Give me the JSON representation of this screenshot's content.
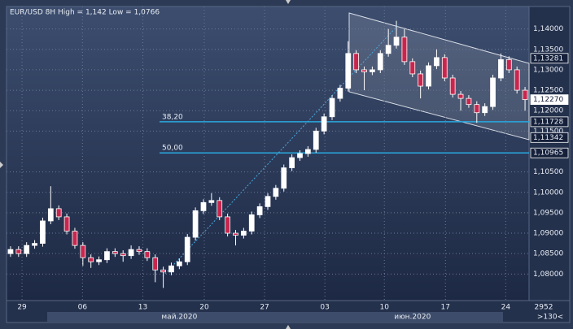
{
  "chart_data": {
    "type": "candlestick",
    "title": "EUR/USD 8H High = 1,142 Low = 1,0766",
    "up_color": "#ffffff",
    "down_color": "#c8264e",
    "candles": [
      [
        1.085,
        1.0868,
        1.0842,
        1.086
      ],
      [
        1.086,
        1.0868,
        1.0842,
        1.085
      ],
      [
        1.085,
        1.0878,
        1.0842,
        1.087
      ],
      [
        1.087,
        1.0883,
        1.0862,
        1.0875
      ],
      [
        1.0875,
        1.0938,
        1.0867,
        1.093
      ],
      [
        1.093,
        1.1015,
        1.0922,
        1.096
      ],
      [
        1.096,
        1.0968,
        1.0932,
        1.094
      ],
      [
        1.094,
        1.0948,
        1.0897,
        1.0905
      ],
      [
        1.0905,
        1.0913,
        1.0862,
        1.087
      ],
      [
        1.087,
        1.0878,
        1.082,
        1.084
      ],
      [
        1.084,
        1.0848,
        1.0815,
        1.083
      ],
      [
        1.083,
        1.0843,
        1.0822,
        1.0835
      ],
      [
        1.0835,
        1.0863,
        1.0827,
        1.0855
      ],
      [
        1.0855,
        1.0863,
        1.0842,
        1.085
      ],
      [
        1.085,
        1.0858,
        1.083,
        1.0845
      ],
      [
        1.0845,
        1.087,
        1.0837,
        1.086
      ],
      [
        1.086,
        1.0868,
        1.0847,
        1.0855
      ],
      [
        1.0855,
        1.0863,
        1.0832,
        1.084
      ],
      [
        1.084,
        1.0848,
        1.078,
        1.081
      ],
      [
        1.081,
        1.0818,
        1.0766,
        1.0805
      ],
      [
        1.0805,
        1.0828,
        1.0797,
        1.082
      ],
      [
        1.082,
        1.0838,
        1.0812,
        1.083
      ],
      [
        1.083,
        1.0898,
        1.0822,
        1.089
      ],
      [
        1.089,
        1.0963,
        1.0882,
        1.0955
      ],
      [
        1.0955,
        1.0983,
        1.0947,
        1.0975
      ],
      [
        1.0975,
        1.0998,
        1.0967,
        1.098
      ],
      [
        1.098,
        1.0988,
        1.0932,
        1.094
      ],
      [
        1.094,
        1.0948,
        1.0892,
        1.09
      ],
      [
        1.09,
        1.0908,
        1.087,
        1.0895
      ],
      [
        1.0895,
        1.0913,
        1.0887,
        1.0905
      ],
      [
        1.0905,
        1.0953,
        1.0897,
        1.0945
      ],
      [
        1.0945,
        1.0973,
        1.0937,
        1.0965
      ],
      [
        1.0965,
        1.0998,
        1.0957,
        1.099
      ],
      [
        1.099,
        1.1018,
        1.0982,
        1.101
      ],
      [
        1.101,
        1.1068,
        1.1002,
        1.106
      ],
      [
        1.106,
        1.1093,
        1.1052,
        1.1085
      ],
      [
        1.1085,
        1.1103,
        1.1077,
        1.1095
      ],
      [
        1.1095,
        1.1113,
        1.1087,
        1.1105
      ],
      [
        1.1105,
        1.1158,
        1.1097,
        1.115
      ],
      [
        1.115,
        1.1193,
        1.1142,
        1.1185
      ],
      [
        1.1185,
        1.1238,
        1.1177,
        1.123
      ],
      [
        1.123,
        1.1263,
        1.1222,
        1.1255
      ],
      [
        1.1255,
        1.137,
        1.1247,
        1.134
      ],
      [
        1.134,
        1.1348,
        1.1292,
        1.13
      ],
      [
        1.13,
        1.1308,
        1.125,
        1.1295
      ],
      [
        1.1295,
        1.1308,
        1.1287,
        1.13
      ],
      [
        1.13,
        1.1348,
        1.1292,
        1.134
      ],
      [
        1.134,
        1.14,
        1.1332,
        1.136
      ],
      [
        1.136,
        1.142,
        1.1352,
        1.138
      ],
      [
        1.138,
        1.14,
        1.1312,
        1.132
      ],
      [
        1.132,
        1.1328,
        1.1282,
        1.129
      ],
      [
        1.129,
        1.1298,
        1.123,
        1.126
      ],
      [
        1.126,
        1.1318,
        1.1252,
        1.131
      ],
      [
        1.131,
        1.135,
        1.1302,
        1.133
      ],
      [
        1.133,
        1.1338,
        1.1272,
        1.128
      ],
      [
        1.128,
        1.1288,
        1.1232,
        1.124
      ],
      [
        1.124,
        1.1248,
        1.12,
        1.123
      ],
      [
        1.123,
        1.1238,
        1.1207,
        1.1215
      ],
      [
        1.1215,
        1.1223,
        1.117,
        1.1195
      ],
      [
        1.1195,
        1.1218,
        1.1187,
        1.121
      ],
      [
        1.121,
        1.1288,
        1.1202,
        1.128
      ],
      [
        1.128,
        1.134,
        1.1272,
        1.1325
      ],
      [
        1.1325,
        1.1333,
        1.1292,
        1.13
      ],
      [
        1.13,
        1.1308,
        1.1242,
        1.125
      ],
      [
        1.125,
        1.1258,
        1.12,
        1.1227
      ]
    ],
    "xlim": [
      0,
      65
    ],
    "xticks": [
      {
        "value": 1.93,
        "label": "29"
      },
      {
        "value": 9.45,
        "label": "06"
      },
      {
        "value": 16.96,
        "label": "13"
      },
      {
        "value": 24.6,
        "label": "20"
      },
      {
        "value": 32.1,
        "label": "27"
      },
      {
        "value": 39.6,
        "label": "03"
      },
      {
        "value": 47.0,
        "label": "10"
      },
      {
        "value": 54.6,
        "label": "17"
      },
      {
        "value": 62.1,
        "label": "24"
      }
    ],
    "months": [
      {
        "value": 21.5,
        "label": "май.2020"
      },
      {
        "value": 50.5,
        "label": "июн.2020"
      }
    ],
    "ylim": [
      1.0735,
      1.1455
    ],
    "yticks": [
      {
        "value": 1.14,
        "label": "1,14000"
      },
      {
        "value": 1.135,
        "label": "1,13500"
      },
      {
        "value": 1.13,
        "label": "1,13000"
      },
      {
        "value": 1.125,
        "label": "1,12500"
      },
      {
        "value": 1.12,
        "label": "1,12000"
      },
      {
        "value": 1.115,
        "label": "1,11500"
      },
      {
        "value": 1.105,
        "label": "1,10500"
      },
      {
        "value": 1.1,
        "label": "1,10000"
      },
      {
        "value": 1.095,
        "label": "1,09500"
      },
      {
        "value": 1.09,
        "label": "1,09000"
      },
      {
        "value": 1.085,
        "label": "1,08500"
      },
      {
        "value": 1.08,
        "label": "1,08000"
      }
    ],
    "grid": true,
    "fib_levels": [
      {
        "value": 1.11728,
        "label": "38,20"
      },
      {
        "value": 1.10965,
        "label": "50,00"
      }
    ],
    "price_marks": [
      {
        "value": 1.13281,
        "label": "1,13281"
      },
      {
        "value": 1.1227,
        "label": "1,12270"
      },
      {
        "value": 1.11728,
        "label": "1,11728"
      },
      {
        "value": 1.11342,
        "label": "1,11342"
      },
      {
        "value": 1.10965,
        "label": "1,10965"
      }
    ],
    "footer": [
      "2952",
      ">130<"
    ]
  }
}
